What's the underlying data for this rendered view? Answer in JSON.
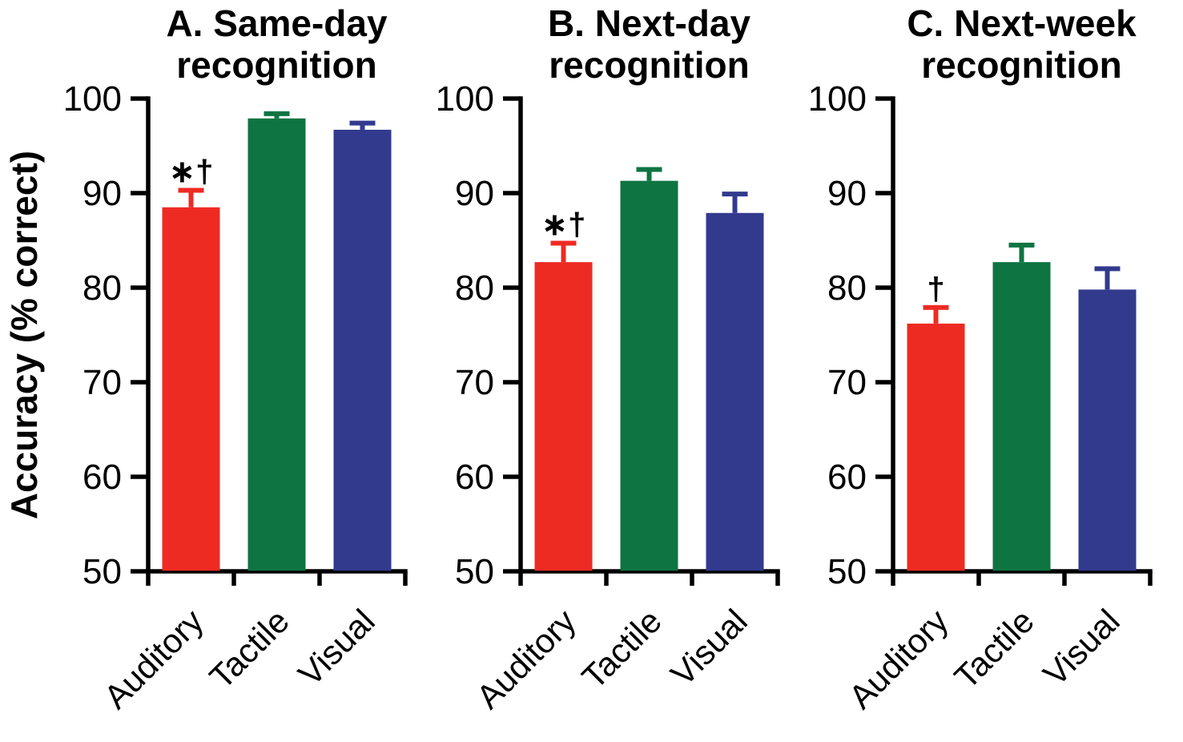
{
  "chart_data": {
    "type": "bar",
    "ylabel": "Accuracy (% correct)",
    "ylim": [
      50,
      100
    ],
    "yticks": [
      50,
      60,
      70,
      80,
      90,
      100
    ],
    "grid": false,
    "legend": null,
    "categories": [
      "Auditory",
      "Tactile",
      "Visual"
    ],
    "bar_colors": [
      "#ee2b23",
      "#0e7442",
      "#323a8e"
    ],
    "axis_color": "#000000",
    "panels": [
      {
        "label": "A",
        "title": "A. Same-day recognition",
        "series": [
          {
            "category": "Auditory",
            "value": 88.5,
            "error": 1.8,
            "annotation": "*†"
          },
          {
            "category": "Tactile",
            "value": 97.9,
            "error": 0.5,
            "annotation": ""
          },
          {
            "category": "Visual",
            "value": 96.7,
            "error": 0.7,
            "annotation": ""
          }
        ]
      },
      {
        "label": "B",
        "title": "B. Next-day recognition",
        "series": [
          {
            "category": "Auditory",
            "value": 82.7,
            "error": 2.0,
            "annotation": "*†"
          },
          {
            "category": "Tactile",
            "value": 91.3,
            "error": 1.2,
            "annotation": ""
          },
          {
            "category": "Visual",
            "value": 87.9,
            "error": 2.0,
            "annotation": ""
          }
        ]
      },
      {
        "label": "C",
        "title": "C. Next-week recognition",
        "series": [
          {
            "category": "Auditory",
            "value": 76.2,
            "error": 1.7,
            "annotation": "†"
          },
          {
            "category": "Tactile",
            "value": 82.7,
            "error": 1.8,
            "annotation": ""
          },
          {
            "category": "Visual",
            "value": 79.8,
            "error": 2.2,
            "annotation": ""
          }
        ]
      }
    ]
  }
}
